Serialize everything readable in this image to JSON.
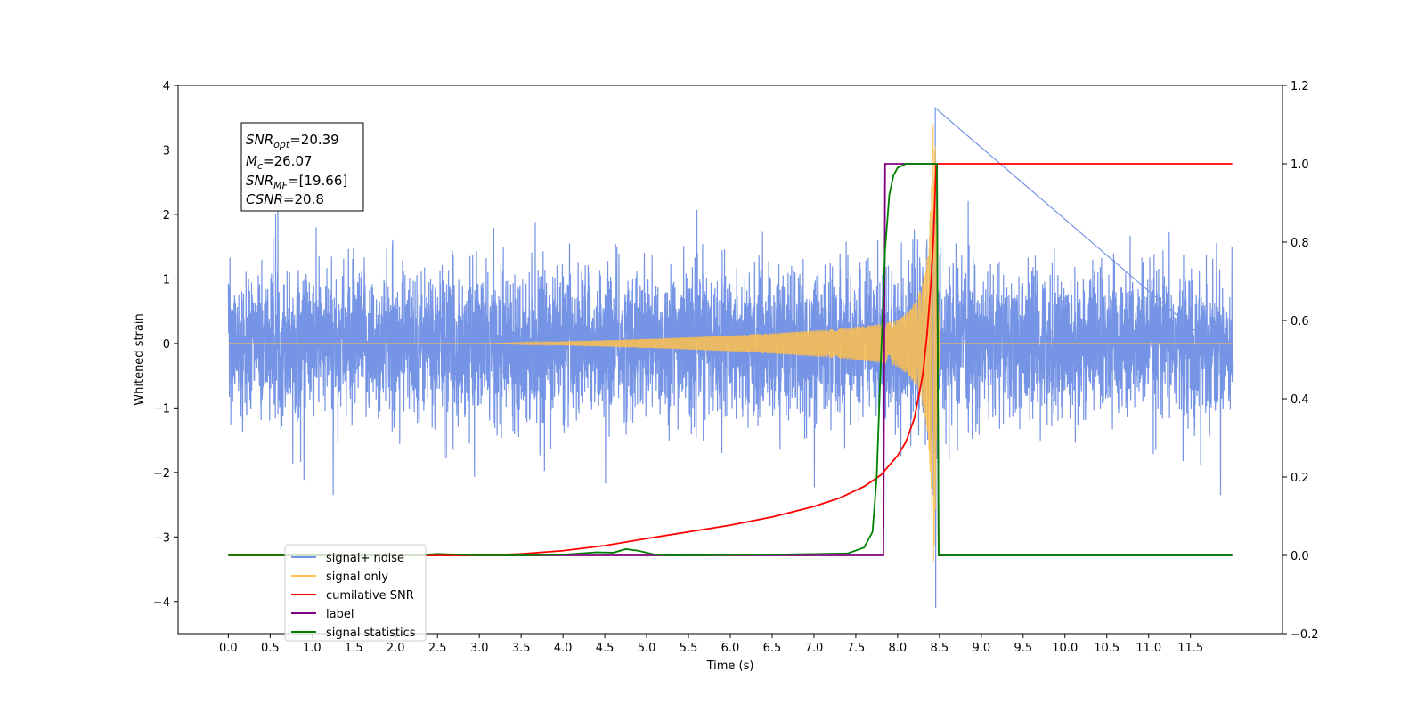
{
  "chart_data": {
    "type": "line",
    "xlabel": "Time (s)",
    "ylabel": "Whitened strain",
    "xlim": [
      -0.6,
      12.6
    ],
    "ylim": [
      -4.5,
      4.0
    ],
    "y2lim": [
      -0.2,
      1.2
    ],
    "x_ticks": [
      "0.0",
      "0.5",
      "1.0",
      "1.5",
      "2.0",
      "2.5",
      "3.0",
      "3.5",
      "4.0",
      "4.5",
      "5.0",
      "5.5",
      "6.0",
      "6.5",
      "7.0",
      "7.5",
      "8.0",
      "8.5",
      "9.0",
      "9.5",
      "10.0",
      "10.5",
      "11.0",
      "11.5"
    ],
    "y_ticks": [
      "4",
      "3",
      "2",
      "1",
      "0",
      "−1",
      "−2",
      "−3",
      "−4"
    ],
    "y2_ticks": [
      "1.2",
      "1.0",
      "0.8",
      "0.6",
      "0.4",
      "0.2",
      "0.0",
      "−0.2"
    ],
    "grid": false,
    "legend_position": "lower-left",
    "stats_box": {
      "line1": {
        "sym": "SNR",
        "sub": "opt",
        "val": "=20.39"
      },
      "line2": {
        "sym": "M",
        "sub": "c",
        "val": "=26.07"
      },
      "line3": {
        "sym": "SNR",
        "sub": "MF",
        "val": "=[19.66]"
      },
      "line4": {
        "sym": "CSNR",
        "sub": "",
        "val": "=20.8"
      }
    },
    "series": [
      {
        "name": "signal+ noise",
        "axis": "left",
        "color": "#7594e5",
        "description_values": {
          "x_range": [
            0.0,
            12.0
          ],
          "noise_std": 0.55,
          "peak_max": 3.65,
          "peak_min": -4.1,
          "peak_time": 8.45
        }
      },
      {
        "name": "signal only",
        "axis": "left",
        "color": "#ffc04d",
        "description_values": {
          "x_range": [
            0.0,
            12.0
          ],
          "chirp_start": 3.0,
          "merger_time": 8.45,
          "peak_amplitude": 3.4
        }
      },
      {
        "name": "cumilative SNR",
        "axis": "right",
        "color": "#ff0000",
        "x": [
          0.0,
          3.0,
          3.5,
          4.0,
          4.5,
          5.0,
          5.5,
          6.0,
          6.5,
          7.0,
          7.3,
          7.6,
          7.8,
          8.0,
          8.1,
          8.2,
          8.3,
          8.35,
          8.4,
          8.43,
          8.46,
          8.5,
          12.0
        ],
        "values": [
          0.0,
          0.0,
          0.004,
          0.012,
          0.025,
          0.043,
          0.06,
          0.077,
          0.098,
          0.125,
          0.146,
          0.176,
          0.205,
          0.255,
          0.29,
          0.35,
          0.46,
          0.56,
          0.7,
          0.82,
          1.0,
          1.0,
          1.0
        ]
      },
      {
        "name": "label",
        "axis": "right",
        "color": "#800080",
        "x": [
          0.0,
          7.83,
          7.85,
          8.47,
          8.49,
          12.0
        ],
        "values": [
          0.0,
          0.0,
          1.0,
          1.0,
          0.0,
          0.0
        ]
      },
      {
        "name": "signal statistics",
        "axis": "right",
        "color": "#008000",
        "x": [
          0.0,
          2.2,
          2.5,
          3.0,
          3.5,
          4.0,
          4.4,
          4.6,
          4.75,
          4.9,
          5.1,
          5.3,
          6.5,
          7.4,
          7.6,
          7.7,
          7.75,
          7.8,
          7.85,
          7.9,
          7.95,
          8.0,
          8.1,
          8.3,
          8.47,
          8.49,
          8.55,
          12.0
        ],
        "values": [
          0.0,
          0.0,
          0.004,
          0.0,
          0.0,
          0.002,
          0.008,
          0.007,
          0.016,
          0.012,
          0.002,
          0.0,
          0.002,
          0.005,
          0.02,
          0.06,
          0.2,
          0.5,
          0.78,
          0.92,
          0.97,
          0.99,
          1.0,
          1.0,
          1.0,
          0.0,
          0.0,
          0.0
        ]
      }
    ],
    "legend": {
      "entries": [
        {
          "label": "signal+ noise",
          "color": "#7594e5"
        },
        {
          "label": "signal only",
          "color": "#ffc04d"
        },
        {
          "label": "cumilative SNR",
          "color": "#ff0000"
        },
        {
          "label": "label",
          "color": "#800080"
        },
        {
          "label": "signal statistics",
          "color": "#008000"
        }
      ]
    }
  }
}
